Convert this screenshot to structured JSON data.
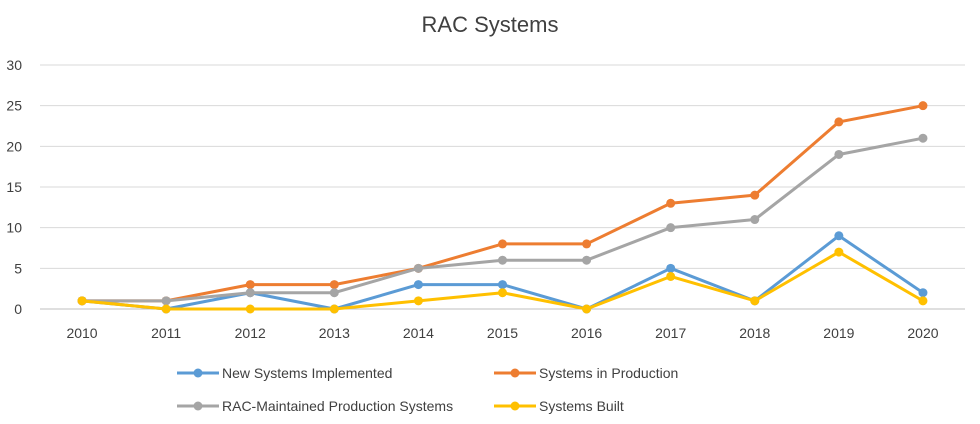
{
  "chart_data": {
    "type": "line",
    "title": "RAC Systems",
    "xlabel": "",
    "ylabel": "",
    "categories": [
      "2010",
      "2011",
      "2012",
      "2013",
      "2014",
      "2015",
      "2016",
      "2017",
      "2018",
      "2019",
      "2020"
    ],
    "ylim": [
      0,
      30
    ],
    "yticks": [
      0,
      5,
      10,
      15,
      20,
      25,
      30
    ],
    "grid": true,
    "legend_position": "bottom",
    "series": [
      {
        "name": "New Systems Implemented",
        "color": "#5B9BD5",
        "values": [
          1,
          0,
          2,
          0,
          3,
          3,
          0,
          5,
          1,
          9,
          2
        ]
      },
      {
        "name": "Systems in Production",
        "color": "#ED7D31",
        "values": [
          1,
          1,
          3,
          3,
          5,
          8,
          8,
          13,
          14,
          23,
          25
        ]
      },
      {
        "name": "RAC-Maintained Production Systems",
        "color": "#A5A5A5",
        "values": [
          1,
          1,
          2,
          2,
          5,
          6,
          6,
          10,
          11,
          19,
          21
        ]
      },
      {
        "name": "Systems Built",
        "color": "#FFC000",
        "values": [
          1,
          0,
          0,
          0,
          1,
          2,
          0,
          4,
          1,
          7,
          1
        ]
      }
    ]
  }
}
